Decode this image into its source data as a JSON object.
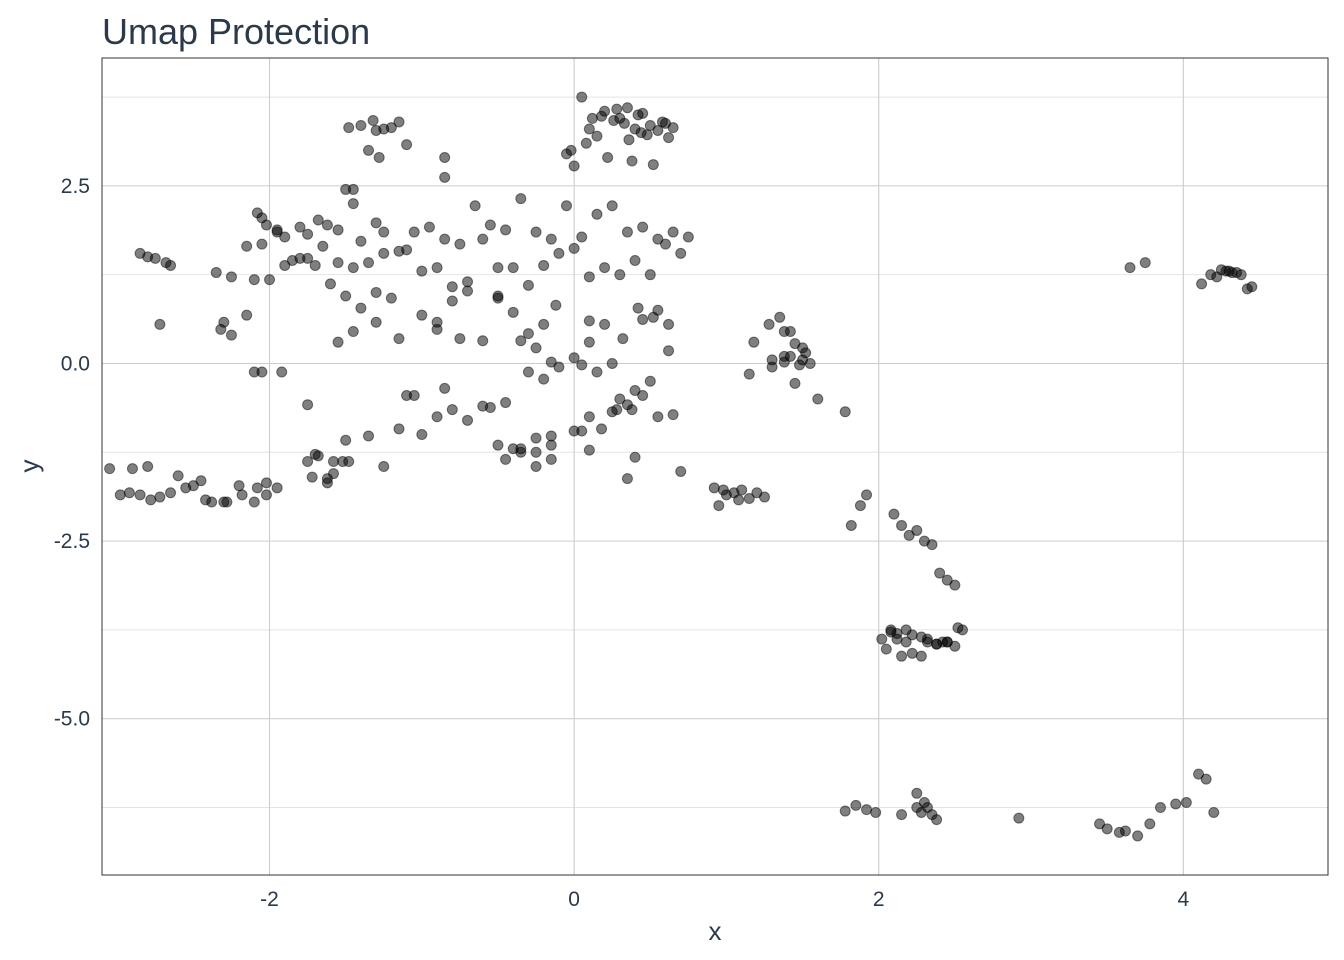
{
  "chart_data": {
    "type": "scatter",
    "title": "Umap Protection",
    "xlabel": "x",
    "ylabel": "y",
    "xlim": [
      -3.1,
      4.95
    ],
    "ylim": [
      -7.2,
      4.3
    ],
    "x_ticks": [
      -2,
      0,
      2,
      4
    ],
    "x_tick_labels": [
      "-2",
      "0",
      "2",
      "4"
    ],
    "y_ticks": [
      2.5,
      0.0,
      -2.5,
      -5.0
    ],
    "y_tick_labels": [
      "2.5",
      "0.0",
      "-2.5",
      "-5.0"
    ],
    "grid": true,
    "legend": "none",
    "points_x": [
      0.05,
      0.12,
      0.2,
      0.28,
      0.35,
      0.42,
      0.5,
      0.58,
      0.65,
      0.18,
      0.26,
      0.33,
      0.4,
      0.48,
      0.55,
      0.62,
      0.1,
      0.3,
      0.45,
      0.6,
      -0.02,
      0.08,
      0.15,
      0.36,
      0.44,
      -0.05,
      0.22,
      0.38,
      0.52,
      0.0,
      -1.48,
      -1.4,
      -1.32,
      -1.25,
      -1.15,
      -1.35,
      -1.28,
      -1.2,
      -1.1,
      -1.3,
      -1.45,
      -0.85,
      -0.85,
      -2.85,
      -2.8,
      -2.75,
      -2.68,
      -2.65,
      -2.72,
      -2.08,
      -2.05,
      -2.02,
      -1.95,
      -1.9,
      -1.8,
      -1.75,
      -1.68,
      -1.62,
      -1.55,
      -1.5,
      -1.45,
      -1.4,
      -1.3,
      -1.25,
      -1.15,
      -1.05,
      -0.95,
      -0.85,
      -0.75,
      -0.65,
      -0.55,
      -0.45,
      -0.35,
      -0.25,
      -0.15,
      -0.05,
      0.05,
      0.15,
      0.25,
      0.35,
      0.45,
      0.55,
      0.65,
      0.75,
      -2.35,
      -2.25,
      -2.15,
      -2.05,
      -1.95,
      -1.85,
      -1.75,
      -1.65,
      -1.55,
      -1.45,
      -1.35,
      -1.25,
      -1.1,
      -1.0,
      -0.9,
      -0.8,
      -0.7,
      -0.6,
      -0.5,
      -0.4,
      -0.3,
      -0.2,
      -0.1,
      0.0,
      0.1,
      0.2,
      0.3,
      0.4,
      0.5,
      0.6,
      0.7,
      -2.3,
      -2.1,
      -2.0,
      -1.9,
      -1.8,
      -1.7,
      -1.6,
      -1.5,
      -1.4,
      -1.3,
      -1.2,
      -1.0,
      -0.9,
      -0.8,
      -0.7,
      -0.6,
      -0.5,
      -0.4,
      -0.3,
      -0.2,
      -0.12,
      0.1,
      0.2,
      0.32,
      0.42,
      0.52,
      0.62,
      -2.32,
      -2.25,
      -2.15,
      -1.55,
      -1.45,
      -1.3,
      -1.15,
      -0.9,
      -0.75,
      -0.5,
      -0.35,
      -0.25,
      -0.15,
      0.0,
      0.1,
      0.25,
      0.45,
      0.55,
      0.62,
      -2.1,
      -2.05,
      -1.92,
      -1.05,
      -0.85,
      -0.6,
      -0.45,
      -0.3,
      -0.2,
      -0.1,
      0.05,
      0.15,
      0.3,
      0.4,
      0.5,
      -0.35,
      -0.25,
      -0.15,
      0.0,
      0.1,
      0.25,
      0.35,
      0.45,
      0.55,
      -1.1,
      -1.0,
      -0.9,
      -0.8,
      -0.7,
      -0.55,
      -0.45,
      -0.35,
      -0.25,
      -0.15,
      0.05,
      0.18,
      0.28,
      0.38,
      -1.75,
      -1.5,
      -1.35,
      -1.25,
      -1.15,
      -0.5,
      -0.4,
      -0.25,
      -0.15,
      0.1,
      0.4,
      0.65,
      0.7,
      0.35,
      -3.05,
      -2.98,
      -2.92,
      -2.85,
      -2.78,
      -2.72,
      -2.65,
      -2.55,
      -2.45,
      -2.38,
      -2.3,
      -2.2,
      -2.1,
      -2.02,
      -1.95,
      -2.28,
      -2.18,
      -2.08,
      -2.02,
      -2.42,
      -2.5,
      -2.6,
      -2.9,
      -2.8,
      -1.72,
      -1.62,
      -1.58,
      -1.52,
      -1.68,
      -1.75,
      -1.7,
      -1.62,
      -1.58,
      -1.48,
      0.95,
      1.05,
      1.15,
      1.25,
      1.0,
      1.1,
      0.92,
      1.2,
      0.98,
      1.08,
      1.28,
      1.35,
      1.42,
      1.5,
      1.38,
      1.45,
      1.52,
      1.18,
      1.3,
      1.38,
      1.15,
      1.3,
      1.38,
      1.42,
      1.5,
      1.48,
      1.55,
      1.6,
      1.45,
      1.78,
      1.82,
      1.92,
      1.88,
      2.1,
      2.15,
      2.2,
      2.25,
      2.3,
      2.35,
      2.4,
      2.45,
      2.5,
      2.55,
      2.12,
      2.18,
      2.28,
      2.38,
      2.45,
      2.52,
      2.08,
      2.22,
      2.32,
      2.42,
      2.5,
      2.05,
      2.12,
      2.18,
      2.22,
      2.28,
      2.32,
      2.38,
      2.45,
      2.02,
      2.08,
      2.15,
      2.25,
      2.3,
      2.35,
      1.78,
      1.85,
      1.92,
      1.98,
      2.15,
      2.25,
      2.32,
      2.38,
      2.28,
      2.92,
      3.45,
      3.5,
      3.58,
      3.62,
      3.7,
      3.78,
      3.85,
      3.95,
      4.02,
      4.1,
      4.15,
      4.2,
      4.25,
      4.3,
      4.35,
      4.38,
      4.42,
      4.45,
      4.12,
      4.18,
      4.22,
      4.28,
      4.32,
      3.65,
      3.75
    ],
    "points_y": [
      3.75,
      3.45,
      3.55,
      3.58,
      3.6,
      3.5,
      3.35,
      3.4,
      3.32,
      3.48,
      3.42,
      3.38,
      3.3,
      3.22,
      3.28,
      3.18,
      3.3,
      3.45,
      3.52,
      3.38,
      3.0,
      3.1,
      3.2,
      3.15,
      3.25,
      2.95,
      2.9,
      2.85,
      2.8,
      2.78,
      3.32,
      3.35,
      3.42,
      3.3,
      3.4,
      3.0,
      2.9,
      3.32,
      3.08,
      3.28,
      2.45,
      2.9,
      2.62,
      1.55,
      1.5,
      1.48,
      1.42,
      1.38,
      0.55,
      2.12,
      2.05,
      1.95,
      1.85,
      1.78,
      1.92,
      1.82,
      2.02,
      1.95,
      1.88,
      2.45,
      2.25,
      1.72,
      1.98,
      1.85,
      1.58,
      1.85,
      1.92,
      1.75,
      1.68,
      2.22,
      1.95,
      1.88,
      2.32,
      1.85,
      1.75,
      2.22,
      1.78,
      2.1,
      2.22,
      1.85,
      1.92,
      1.75,
      1.85,
      1.78,
      1.28,
      1.22,
      1.65,
      1.68,
      1.88,
      1.45,
      1.48,
      1.65,
      1.42,
      1.35,
      1.42,
      1.55,
      1.6,
      1.3,
      1.35,
      0.88,
      1.15,
      1.75,
      1.35,
      1.35,
      1.1,
      1.38,
      1.55,
      1.62,
      1.22,
      1.35,
      1.25,
      1.45,
      1.25,
      1.68,
      1.55,
      0.58,
      1.18,
      1.18,
      1.38,
      1.48,
      1.38,
      1.12,
      0.95,
      0.78,
      1.0,
      0.92,
      0.68,
      0.58,
      1.08,
      1.02,
      0.32,
      0.92,
      0.72,
      0.42,
      0.55,
      0.82,
      0.6,
      0.55,
      0.35,
      0.78,
      0.65,
      0.55,
      0.48,
      0.4,
      0.68,
      0.3,
      0.45,
      0.58,
      0.35,
      0.48,
      0.35,
      0.95,
      0.32,
      0.22,
      0.02,
      0.08,
      0.3,
      0.0,
      0.62,
      0.75,
      0.18,
      -0.12,
      -0.12,
      -0.12,
      -0.45,
      -0.35,
      -0.6,
      -0.55,
      -0.12,
      -0.22,
      -0.05,
      -0.02,
      -0.12,
      -0.5,
      -0.38,
      -0.25,
      -1.25,
      -1.05,
      -1.15,
      -0.95,
      -0.75,
      -0.68,
      -0.58,
      -0.45,
      -0.75,
      -0.45,
      -1.0,
      -0.75,
      -0.65,
      -0.8,
      -0.62,
      -1.35,
      -1.2,
      -1.45,
      -1.35,
      -0.95,
      -0.92,
      -0.65,
      -0.65,
      -0.58,
      -1.08,
      -1.02,
      -1.45,
      -0.92,
      -1.15,
      -1.2,
      -1.25,
      -1.02,
      -1.22,
      -1.32,
      -0.72,
      -1.52,
      -1.62,
      -1.48,
      -1.85,
      -1.82,
      -1.85,
      -1.92,
      -1.88,
      -1.82,
      -1.75,
      -1.65,
      -1.95,
      -1.95,
      -1.72,
      -1.95,
      -1.68,
      -1.75,
      -1.95,
      -1.85,
      -1.75,
      -1.85,
      -1.92,
      -1.72,
      -1.58,
      -1.48,
      -1.45,
      -1.6,
      -1.68,
      -1.55,
      -1.38,
      -1.3,
      -1.38,
      -1.28,
      -1.62,
      -1.38,
      -1.38,
      -2.0,
      -1.82,
      -1.9,
      -1.88,
      -1.85,
      -1.78,
      -1.75,
      -1.82,
      -1.78,
      -1.92,
      0.55,
      0.65,
      0.45,
      0.22,
      0.45,
      0.28,
      0.15,
      0.3,
      0.05,
      0.1,
      -0.15,
      -0.05,
      0.02,
      0.1,
      0.05,
      -0.02,
      0.0,
      -0.5,
      -0.28,
      -0.68,
      -2.28,
      -1.85,
      -2.0,
      -2.12,
      -2.28,
      -2.42,
      -2.35,
      -2.5,
      -2.55,
      -2.95,
      -3.05,
      -3.12,
      -3.75,
      -3.8,
      -3.75,
      -3.85,
      -3.95,
      -3.92,
      -3.72,
      -3.78,
      -3.82,
      -3.92,
      -3.92,
      -3.98,
      -4.02,
      -3.88,
      -3.92,
      -4.08,
      -4.12,
      -3.88,
      -3.95,
      -3.92,
      -3.88,
      -3.75,
      -4.12,
      -6.25,
      -6.18,
      -6.35,
      -6.3,
      -6.22,
      -6.28,
      -6.32,
      -6.35,
      -6.05,
      -6.25,
      -6.42,
      -6.32,
      -6.4,
      -6.48,
      -6.55,
      -6.6,
      -6.58,
      -6.65,
      -6.48,
      -6.25,
      -6.2,
      -6.18,
      -5.78,
      -5.85,
      -6.32,
      1.32,
      1.3,
      1.28,
      1.25,
      1.05,
      1.08,
      1.12,
      1.25,
      1.22,
      1.3,
      1.28,
      1.35,
      1.42,
      1.38,
      1.45,
      1.48,
      1.5,
      1.52,
      1.52,
      1.22,
      1.25,
      1.18,
      1.35,
      1.1,
      1.28
    ]
  }
}
